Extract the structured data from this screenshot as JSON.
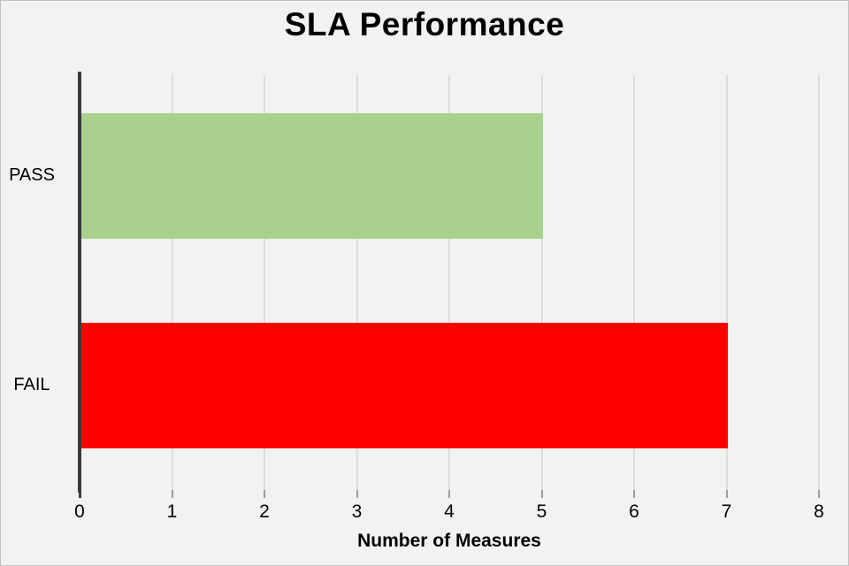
{
  "chart_data": {
    "type": "bar",
    "orientation": "horizontal",
    "title": "SLA Performance",
    "xlabel": "Number of Measures",
    "ylabel": "",
    "categories": [
      "PASS",
      "FAIL"
    ],
    "values": [
      5,
      7
    ],
    "bar_colors": [
      "#a9d18e",
      "#ff0000"
    ],
    "xlim": [
      0,
      8
    ],
    "xticks": [
      0,
      1,
      2,
      3,
      4,
      5,
      6,
      7,
      8
    ],
    "grid": "vertical gridlines only",
    "legend_position": "none"
  },
  "colors": {
    "background": "#f2f2f2",
    "frame_border": "#c1c1c1",
    "gridline": "#dcdcdc",
    "axis_line": "#3a3a3a",
    "tick_mark": "#9c9c9c",
    "text": "#000000"
  }
}
